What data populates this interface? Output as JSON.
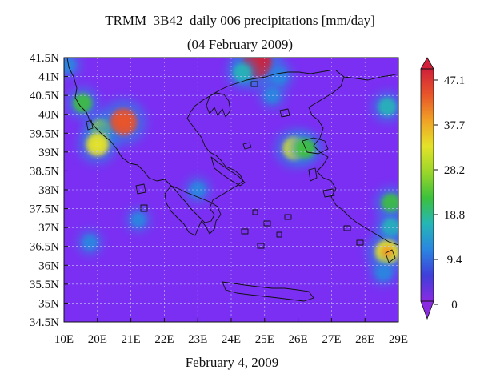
{
  "title": "TRMM_3B42_daily 006 precipitations [mm/day]",
  "subtitle": "(04 February 2009)",
  "footer": "February 4, 2009",
  "map": {
    "lon_range": [
      20,
      29
    ],
    "lat_range": [
      34.5,
      41.5
    ],
    "base_color": "#7b2ff2",
    "x_ticks": [
      "10E",
      "20E",
      "21E",
      "22E",
      "23E",
      "24E",
      "25E",
      "26E",
      "27E",
      "28E",
      "29E"
    ],
    "y_ticks": [
      "41.5N",
      "41N",
      "40.5N",
      "40N",
      "39.5N",
      "39N",
      "38.5N",
      "38N",
      "37.5N",
      "37N",
      "36.5N",
      "36N",
      "35.5N",
      "35N",
      "34.5N"
    ]
  },
  "colorbar": {
    "labels": [
      "47.1",
      "37.7",
      "28.2",
      "18.8",
      "9.4",
      "0"
    ],
    "colors": [
      "#8a2be2",
      "#3f3fd9",
      "#2a86e0",
      "#26b6b6",
      "#3cc13c",
      "#9bd62a",
      "#e3e22a",
      "#f0a226",
      "#e8552a",
      "#d0203a"
    ]
  },
  "precip_blobs": [
    {
      "lon": 20.1,
      "lat": 41.3,
      "value": 10
    },
    {
      "lon": 20.5,
      "lat": 40.3,
      "value": 20
    },
    {
      "lon": 21.0,
      "lat": 39.6,
      "value": 24
    },
    {
      "lon": 21.6,
      "lat": 39.8,
      "value": 40
    },
    {
      "lon": 20.9,
      "lat": 39.2,
      "value": 30
    },
    {
      "lon": 25.2,
      "lat": 41.35,
      "value": 47
    },
    {
      "lon": 24.8,
      "lat": 41.1,
      "value": 18
    },
    {
      "lon": 25.8,
      "lat": 41.0,
      "value": 12
    },
    {
      "lon": 25.6,
      "lat": 40.5,
      "value": 10
    },
    {
      "lon": 26.2,
      "lat": 39.1,
      "value": 30
    },
    {
      "lon": 26.5,
      "lat": 39.1,
      "value": 22
    },
    {
      "lon": 28.7,
      "lat": 40.2,
      "value": 18
    },
    {
      "lon": 28.8,
      "lat": 37.65,
      "value": 20
    },
    {
      "lon": 28.8,
      "lat": 37.0,
      "value": 18
    },
    {
      "lon": 28.7,
      "lat": 36.35,
      "value": 34
    },
    {
      "lon": 28.6,
      "lat": 35.8,
      "value": 10
    },
    {
      "lon": 23.6,
      "lat": 38.0,
      "value": 10
    },
    {
      "lon": 22.0,
      "lat": 37.2,
      "value": 8
    },
    {
      "lon": 20.7,
      "lat": 36.6,
      "value": 9
    }
  ]
}
